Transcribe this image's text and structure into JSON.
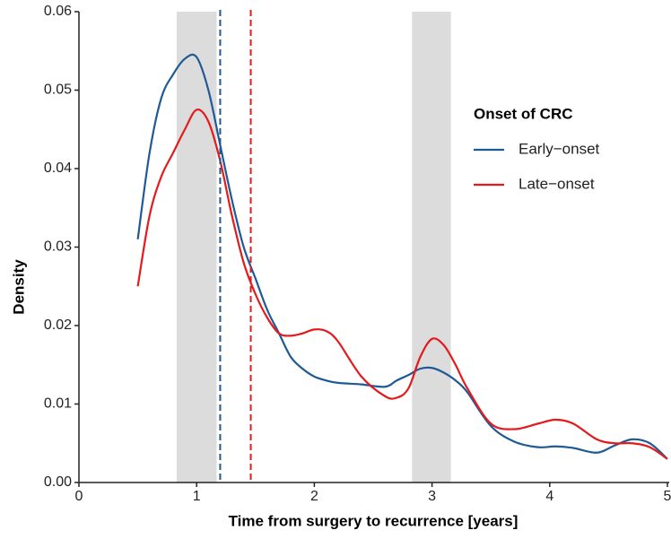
{
  "chart_data": {
    "type": "line",
    "x_label": "Time from surgery to recurrence [years]",
    "y_label": "Density",
    "legend_title": "Onset of CRC",
    "legend_position": "right",
    "x": [
      0.5,
      0.6,
      0.7,
      0.8,
      0.9,
      1.0,
      1.1,
      1.2,
      1.3,
      1.4,
      1.5,
      1.6,
      1.7,
      1.8,
      1.9,
      2.0,
      2.1,
      2.2,
      2.4,
      2.6,
      2.7,
      2.8,
      2.9,
      3.0,
      3.1,
      3.2,
      3.3,
      3.5,
      3.7,
      3.9,
      4.05,
      4.2,
      4.4,
      4.55,
      4.7,
      4.85,
      5.0
    ],
    "series": [
      {
        "name": "Early−onset",
        "color": "#1f5a96",
        "values": [
          0.031,
          0.042,
          0.049,
          0.052,
          0.054,
          0.0542,
          0.05,
          0.043,
          0.036,
          0.03,
          0.026,
          0.022,
          0.019,
          0.016,
          0.0145,
          0.0135,
          0.013,
          0.0127,
          0.0125,
          0.0122,
          0.013,
          0.0137,
          0.0145,
          0.0146,
          0.014,
          0.013,
          0.0115,
          0.0072,
          0.0052,
          0.0045,
          0.0046,
          0.0044,
          0.0038,
          0.0047,
          0.0055,
          0.005,
          0.003
        ]
      },
      {
        "name": "Late−onset",
        "color": "#e41a1c",
        "values": [
          0.025,
          0.034,
          0.039,
          0.042,
          0.045,
          0.0475,
          0.046,
          0.041,
          0.034,
          0.028,
          0.024,
          0.021,
          0.019,
          0.0187,
          0.019,
          0.0195,
          0.0193,
          0.018,
          0.0135,
          0.011,
          0.0108,
          0.012,
          0.016,
          0.0183,
          0.0175,
          0.015,
          0.012,
          0.0075,
          0.0068,
          0.0075,
          0.008,
          0.0075,
          0.0055,
          0.005,
          0.005,
          0.0045,
          0.003
        ]
      }
    ],
    "shaded_regions": [
      [
        0.83,
        1.17
      ],
      [
        2.83,
        3.16
      ]
    ],
    "shade_color": "#dcdcdc",
    "vlines": [
      {
        "x": 1.2,
        "color": "#1f5a96"
      },
      {
        "x": 1.46,
        "color": "#e41a1c"
      }
    ],
    "xlim": [
      0,
      5
    ],
    "xticks": [
      0,
      1,
      2,
      3,
      4,
      5
    ],
    "ylim": [
      0,
      0.06
    ],
    "yticks": [
      {
        "value": 0,
        "label": "0.00"
      },
      {
        "value": 0.01,
        "label": "0.01"
      },
      {
        "value": 0.02,
        "label": "0.02"
      },
      {
        "value": 0.03,
        "label": "0.03"
      },
      {
        "value": 0.04,
        "label": "0.04"
      },
      {
        "value": 0.05,
        "label": "0.05"
      },
      {
        "value": 0.06,
        "label": "0.06"
      }
    ],
    "grid": false
  }
}
